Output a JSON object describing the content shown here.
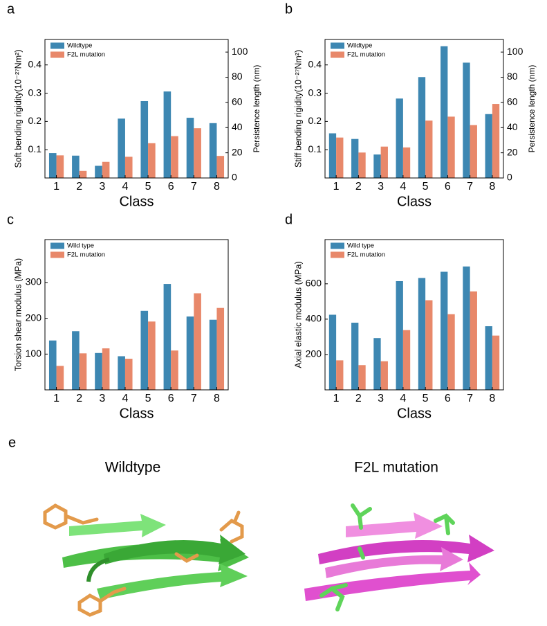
{
  "chart_data": [
    {
      "type": "bar",
      "panel_label": "a",
      "xlabel": "Class",
      "ylabel": "Soft bending rigidity(10⁻²⁷Nm²)",
      "y2label": "Persistence length (nm)",
      "categories": [
        "1",
        "2",
        "3",
        "4",
        "5",
        "6",
        "7",
        "8"
      ],
      "series": [
        {
          "name": "Wildtype",
          "color": "#3d87b2",
          "values": [
            0.088,
            0.079,
            0.043,
            0.21,
            0.272,
            0.306,
            0.213,
            0.194
          ]
        },
        {
          "name": "F2L mutation",
          "color": "#e8886a",
          "values": [
            0.08,
            0.025,
            0.057,
            0.075,
            0.123,
            0.148,
            0.176,
            0.078
          ]
        }
      ],
      "ylim": [
        0,
        0.49
      ],
      "yticks": [
        0.1,
        0.2,
        0.3,
        0.4
      ],
      "y2lim": [
        0,
        110
      ],
      "y2ticks": [
        0,
        20,
        40,
        60,
        80,
        100
      ],
      "legend": "upper left"
    },
    {
      "type": "bar",
      "panel_label": "b",
      "xlabel": "Class",
      "ylabel": "Stiff bending rigidity(10⁻²⁷Nm²)",
      "y2label": "Persistence length (nm)",
      "categories": [
        "1",
        "2",
        "3",
        "4",
        "5",
        "6",
        "7",
        "8"
      ],
      "series": [
        {
          "name": "Wildtype",
          "color": "#3d87b2",
          "values": [
            0.158,
            0.138,
            0.083,
            0.281,
            0.357,
            0.466,
            0.408,
            0.226
          ]
        },
        {
          "name": "F2L mutation",
          "color": "#e8886a",
          "values": [
            0.143,
            0.09,
            0.111,
            0.108,
            0.203,
            0.217,
            0.187,
            0.262
          ]
        }
      ],
      "ylim": [
        0,
        0.49
      ],
      "yticks": [
        0.1,
        0.2,
        0.3,
        0.4
      ],
      "y2lim": [
        0,
        110
      ],
      "y2ticks": [
        0,
        20,
        40,
        60,
        80,
        100
      ],
      "legend": "upper left"
    },
    {
      "type": "bar",
      "panel_label": "c",
      "xlabel": "Class",
      "ylabel": "Torsion shear modulus (MPa)",
      "categories": [
        "1",
        "2",
        "3",
        "4",
        "5",
        "6",
        "7",
        "8"
      ],
      "series": [
        {
          "name": "Wild type",
          "color": "#3d87b2",
          "values": [
            138,
            164,
            103,
            94,
            221,
            296,
            205,
            196
          ]
        },
        {
          "name": "F2L mutation",
          "color": "#e8886a",
          "values": [
            67,
            102,
            116,
            87,
            191,
            110,
            270,
            229
          ]
        }
      ],
      "ylim": [
        0,
        420
      ],
      "yticks": [
        100,
        200,
        300
      ],
      "legend": "upper left"
    },
    {
      "type": "bar",
      "panel_label": "d",
      "xlabel": "Class",
      "ylabel": "Axial elastic modulus (MPa)",
      "categories": [
        "1",
        "2",
        "3",
        "4",
        "5",
        "6",
        "7",
        "8"
      ],
      "series": [
        {
          "name": "Wild type",
          "color": "#3d87b2",
          "values": [
            425,
            380,
            293,
            615,
            633,
            668,
            698,
            360
          ]
        },
        {
          "name": "F2L mutation",
          "color": "#e8886a",
          "values": [
            167,
            140,
            162,
            338,
            507,
            428,
            557,
            307
          ]
        }
      ],
      "ylim": [
        0,
        850
      ],
      "yticks": [
        200,
        400,
        600
      ],
      "legend": "upper left"
    }
  ],
  "panel_e": {
    "label": "e",
    "left_title": "Wildtype",
    "right_title": "F2L mutation"
  }
}
